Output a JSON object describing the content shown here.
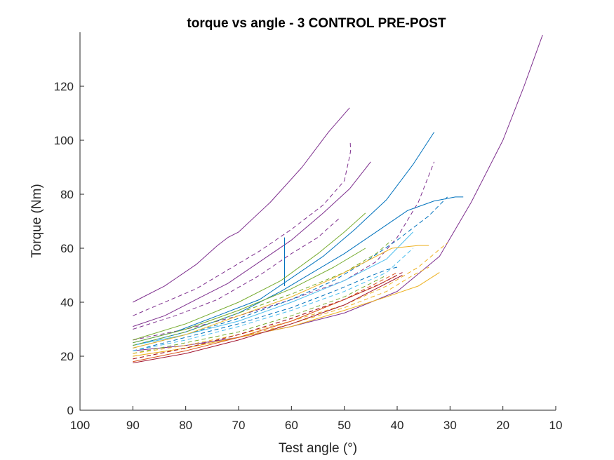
{
  "chart_data": {
    "type": "line",
    "title": "torque vs angle - 3 CONTROL PRE-POST",
    "xlabel": "Test angle (°)",
    "ylabel": "Torque (Nm)",
    "xlim": [
      10,
      100
    ],
    "ylim": [
      0,
      140
    ],
    "x_reversed": true,
    "x_ticks": [
      100,
      90,
      80,
      70,
      60,
      50,
      40,
      30,
      20,
      10
    ],
    "y_ticks": [
      0,
      20,
      40,
      60,
      80,
      100,
      120
    ],
    "grid": false,
    "legend": "none",
    "series": [
      {
        "color": "#7E2F8E",
        "style": "solid",
        "x": [
          90,
          84,
          78,
          74,
          72,
          70,
          64,
          58,
          53,
          49
        ],
        "y": [
          40,
          46,
          54,
          61,
          64,
          66,
          77,
          90,
          103,
          112
        ]
      },
      {
        "color": "#7E2F8E",
        "style": "dashed",
        "x": [
          90,
          84,
          78,
          72,
          66,
          60,
          54,
          50,
          49,
          48.8,
          48.9
        ],
        "y": [
          35,
          40,
          45,
          52,
          59,
          67,
          76,
          85,
          94,
          96,
          100
        ]
      },
      {
        "color": "#7E2F8E",
        "style": "solid",
        "x": [
          90,
          84,
          78,
          72,
          66,
          60,
          54,
          49,
          45
        ],
        "y": [
          31,
          35,
          41,
          47,
          55,
          63,
          73,
          82,
          92
        ]
      },
      {
        "color": "#7E2F8E",
        "style": "dashed",
        "x": [
          90,
          82,
          74,
          66,
          60,
          55,
          51
        ],
        "y": [
          30,
          35,
          41,
          50,
          58,
          64,
          71
        ]
      },
      {
        "color": "#7E2F8E",
        "style": "dashed",
        "x": [
          90,
          80,
          70,
          60,
          50,
          44,
          40,
          36,
          33
        ],
        "y": [
          26,
          30,
          35,
          41,
          48,
          55,
          64,
          77,
          92
        ]
      },
      {
        "color": "#7E2F8E",
        "style": "solid",
        "x": [
          90,
          80,
          70,
          60,
          50,
          40,
          32,
          26,
          20,
          16,
          12.5
        ],
        "y": [
          22,
          24,
          27,
          31,
          36,
          44,
          57,
          77,
          100,
          120,
          139
        ]
      },
      {
        "color": "#0072BD",
        "style": "solid",
        "x": [
          90,
          82,
          74,
          66,
          60,
          54,
          48,
          42,
          37,
          33
        ],
        "y": [
          25,
          29,
          35,
          41,
          49,
          57,
          67,
          78,
          91,
          103
        ]
      },
      {
        "color": "#0072BD",
        "style": "solid",
        "x": [
          90,
          80,
          70,
          62,
          56,
          50,
          44,
          38,
          33,
          29,
          27.5
        ],
        "y": [
          24,
          29,
          36,
          44,
          51,
          58,
          66,
          74,
          77.5,
          79,
          79
        ]
      },
      {
        "color": "#0072BD",
        "style": "solid",
        "x": [
          61.3,
          61.3
        ],
        "y": [
          46,
          64
        ]
      },
      {
        "color": "#0072BD",
        "style": "dashed",
        "x": [
          90,
          80,
          70,
          60,
          52,
          46,
          40,
          34,
          30.5
        ],
        "y": [
          23,
          28,
          34,
          41,
          48,
          55,
          63,
          72,
          79
        ]
      },
      {
        "color": "#0072BD",
        "style": "dashed",
        "x": [
          90,
          80,
          70,
          60,
          52,
          46,
          42,
          40
        ],
        "y": [
          22,
          27,
          32,
          38,
          44,
          49,
          52,
          53
        ]
      },
      {
        "color": "#4DBEEE",
        "style": "solid",
        "x": [
          90,
          80,
          70,
          60,
          50,
          42,
          37
        ],
        "y": [
          24,
          28,
          33,
          40,
          48,
          56,
          66
        ]
      },
      {
        "color": "#4DBEEE",
        "style": "dashed",
        "x": [
          90,
          80,
          70,
          60,
          50,
          42,
          37
        ],
        "y": [
          22,
          26,
          31,
          37,
          44,
          51,
          60
        ]
      },
      {
        "color": "#77AC30",
        "style": "solid",
        "x": [
          90,
          80,
          70,
          62,
          55,
          50,
          46
        ],
        "y": [
          26,
          32,
          40,
          48,
          58,
          66,
          73
        ]
      },
      {
        "color": "#77AC30",
        "style": "solid",
        "x": [
          90,
          80,
          70,
          60,
          52,
          46
        ],
        "y": [
          25,
          30,
          37,
          45,
          53,
          60
        ]
      },
      {
        "color": "#77AC30",
        "style": "dashed",
        "x": [
          90,
          80,
          70,
          60,
          50,
          44,
          41
        ],
        "y": [
          24,
          29,
          36,
          43,
          51,
          58,
          63
        ]
      },
      {
        "color": "#77AC30",
        "style": "dashed",
        "x": [
          90,
          80,
          70,
          60,
          50,
          42
        ],
        "y": [
          21,
          25,
          29,
          35,
          42,
          50
        ]
      },
      {
        "color": "#EDB120",
        "style": "solid",
        "x": [
          90,
          80,
          70,
          60,
          52,
          46,
          41,
          36,
          34
        ],
        "y": [
          23,
          28,
          35,
          42,
          49,
          55,
          60,
          61,
          61
        ]
      },
      {
        "color": "#EDB120",
        "style": "solid",
        "x": [
          90,
          80,
          70,
          60,
          50,
          42,
          36,
          32
        ],
        "y": [
          20,
          23,
          27,
          31,
          37,
          42,
          46,
          51
        ]
      },
      {
        "color": "#EDB120",
        "style": "dashed",
        "x": [
          90,
          80,
          70,
          60,
          50,
          42,
          36,
          30.5
        ],
        "y": [
          21,
          24,
          28,
          33,
          39,
          46,
          53,
          62
        ]
      },
      {
        "color": "#EDB120",
        "style": "dashed",
        "x": [
          90,
          80,
          70,
          60,
          50,
          42,
          37,
          34
        ],
        "y": [
          20,
          23,
          27,
          32,
          38,
          44,
          50,
          53
        ]
      },
      {
        "color": "#D95319",
        "style": "solid",
        "x": [
          90,
          80,
          70,
          60,
          50,
          44,
          40
        ],
        "y": [
          18,
          22,
          27,
          33,
          41,
          46,
          50
        ]
      },
      {
        "color": "#D95319",
        "style": "dashed",
        "x": [
          90,
          80,
          70,
          60,
          50,
          44,
          40
        ],
        "y": [
          19,
          23,
          28,
          34,
          41,
          47,
          51
        ]
      },
      {
        "color": "#A2142F",
        "style": "solid",
        "x": [
          90,
          80,
          70,
          60,
          50,
          43,
          39
        ],
        "y": [
          17.5,
          21,
          26,
          32,
          39,
          46,
          50
        ]
      },
      {
        "color": "#A2142F",
        "style": "dashed",
        "x": [
          90,
          80,
          70,
          60,
          50,
          43,
          39
        ],
        "y": [
          19,
          23,
          28,
          34,
          41,
          47,
          51
        ]
      }
    ]
  }
}
